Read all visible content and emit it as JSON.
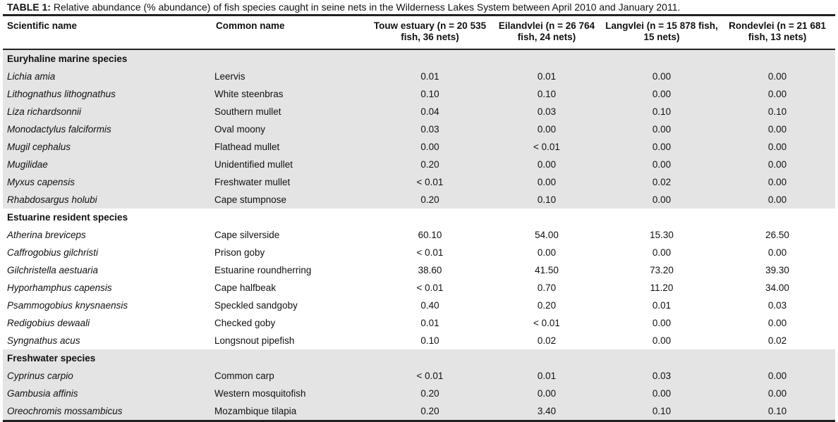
{
  "title": {
    "label": "TABLE 1:",
    "text": "Relative abundance (% abundance) of fish species caught in seine nets in the Wilderness Lakes System between April 2010 and January 2011."
  },
  "columns": [
    "Scientific name",
    "Common name",
    "Touw estuary (n = 20 535 fish, 36 nets)",
    "Eilandvlei (n = 26 764 fish, 24 nets)",
    "Langvlei (n = 15 878 fish, 15 nets)",
    "Rondevlei (n = 21 681 fish, 13 nets)"
  ],
  "sections": [
    {
      "name": "Euryhaline marine species",
      "rows": [
        {
          "scientific": "Lichia amia",
          "common": "Leervis",
          "values": [
            "0.01",
            "0.01",
            "0.00",
            "0.00"
          ]
        },
        {
          "scientific": "Lithognathus lithognathus",
          "common": "White steenbras",
          "values": [
            "0.10",
            "0.10",
            "0.00",
            "0.00"
          ]
        },
        {
          "scientific": "Liza richardsonnii",
          "common": "Southern mullet",
          "values": [
            "0.04",
            "0.03",
            "0.10",
            "0.10"
          ]
        },
        {
          "scientific": "Monodactylus falciformis",
          "common": "Oval moony",
          "values": [
            "0.03",
            "0.00",
            "0.00",
            "0.00"
          ]
        },
        {
          "scientific": "Mugil cephalus",
          "common": "Flathead mullet",
          "values": [
            "0.00",
            "< 0.01",
            "0.00",
            "0.00"
          ]
        },
        {
          "scientific": "Mugilidae",
          "common": "Unidentified mullet",
          "values": [
            "0.20",
            "0.00",
            "0.00",
            "0.00"
          ]
        },
        {
          "scientific": "Myxus capensis",
          "common": "Freshwater mullet",
          "values": [
            "< 0.01",
            "0.00",
            "0.02",
            "0.00"
          ]
        },
        {
          "scientific": "Rhabdosargus holubi",
          "common": "Cape stumpnose",
          "values": [
            "0.20",
            "0.10",
            "0.00",
            "0.00"
          ]
        }
      ]
    },
    {
      "name": "Estuarine resident species",
      "rows": [
        {
          "scientific": "Atherina breviceps",
          "common": "Cape silverside",
          "values": [
            "60.10",
            "54.00",
            "15.30",
            "26.50"
          ]
        },
        {
          "scientific": "Caffrogobius gilchristi",
          "common": "Prison goby",
          "values": [
            "< 0.01",
            "0.00",
            "0.00",
            "0.00"
          ]
        },
        {
          "scientific": "Gilchristella aestuaria",
          "common": "Estuarine roundherring",
          "values": [
            "38.60",
            "41.50",
            "73.20",
            "39.30"
          ]
        },
        {
          "scientific": "Hyporhamphus capensis",
          "common": "Cape halfbeak",
          "values": [
            "< 0.01",
            "0.70",
            "11.20",
            "34.00"
          ]
        },
        {
          "scientific": "Psammogobius knysnaensis",
          "common": "Speckled sandgoby",
          "values": [
            "0.40",
            "0.20",
            "0.01",
            "0.03"
          ]
        },
        {
          "scientific": "Redigobius dewaali",
          "common": "Checked goby",
          "values": [
            "0.01",
            "< 0.01",
            "0.00",
            "0.00"
          ]
        },
        {
          "scientific": "Syngnathus acus",
          "common": "Longsnout pipefish",
          "values": [
            "0.10",
            "0.02",
            "0.00",
            "0.02"
          ]
        }
      ]
    },
    {
      "name": "Freshwater species",
      "rows": [
        {
          "scientific": "Cyprinus carpio",
          "common": "Common carp",
          "values": [
            "< 0.01",
            "0.01",
            "0.03",
            "0.00"
          ]
        },
        {
          "scientific": "Gambusia affinis",
          "common": "Western mosquitofish",
          "values": [
            "0.20",
            "0.00",
            "0.00",
            "0.00"
          ]
        },
        {
          "scientific": "Oreochromis mossambicus",
          "common": "Mozambique tilapia",
          "values": [
            "0.20",
            "3.40",
            "0.10",
            "0.10"
          ]
        }
      ]
    }
  ]
}
